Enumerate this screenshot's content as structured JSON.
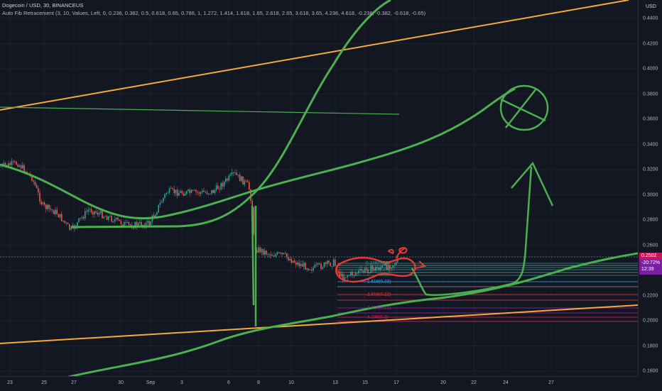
{
  "header": {
    "title": "Dogecoin / USD, 30, BINANCEUS",
    "indicator": "Auto Fib Retracement (3, 10, Values, Left, 0, 0.236, 0.382, 0.5, 0.618, 0.65, 0.786, 1, 1.272, 1.414, 1.618, 1.65, 2.618, 2.65, 3.618, 3.65, 4.236, 4.618, -0.236, -0.382, -0.618, -0.65)"
  },
  "price_axis": {
    "currency": "USD",
    "ticks": [
      "0.4400",
      "0.4200",
      "0.4000",
      "0.3800",
      "0.3600",
      "0.3400",
      "0.3200",
      "0.3000",
      "0.2800",
      "0.2600",
      "0.2400",
      "0.2200",
      "0.2000",
      "0.1800",
      "0.1600"
    ],
    "current_price": "0.2502",
    "countdown_a": "-20:72%",
    "countdown_b": "12:39"
  },
  "time_axis": {
    "ticks": [
      "23",
      "25",
      "27",
      "30",
      "Sep",
      "3",
      "6",
      "8",
      "10",
      "13",
      "15",
      "17",
      "20",
      "22",
      "24",
      "27"
    ]
  },
  "fib_labels": [
    {
      "text": "0.236(0.23)",
      "color": "#26a69a"
    },
    {
      "text": "0.786(0.24)",
      "color": "#26a69a"
    },
    {
      "text": "1.618(0.23)",
      "color": "#42a5f5"
    },
    {
      "text": "2.618(0.22)",
      "color": "#f23645"
    },
    {
      "text": "3.618(0.21)",
      "color": "#9c27b0"
    },
    {
      "text": "4.236(0.2)",
      "color": "#e91e63"
    }
  ],
  "colors": {
    "background": "#131722",
    "grid": "#1e222d",
    "up": "#26a69a",
    "down": "#ef5350",
    "trend_orange": "#f7a93c",
    "drawing_green": "#4caf50",
    "drawing_red": "#e53935"
  }
}
